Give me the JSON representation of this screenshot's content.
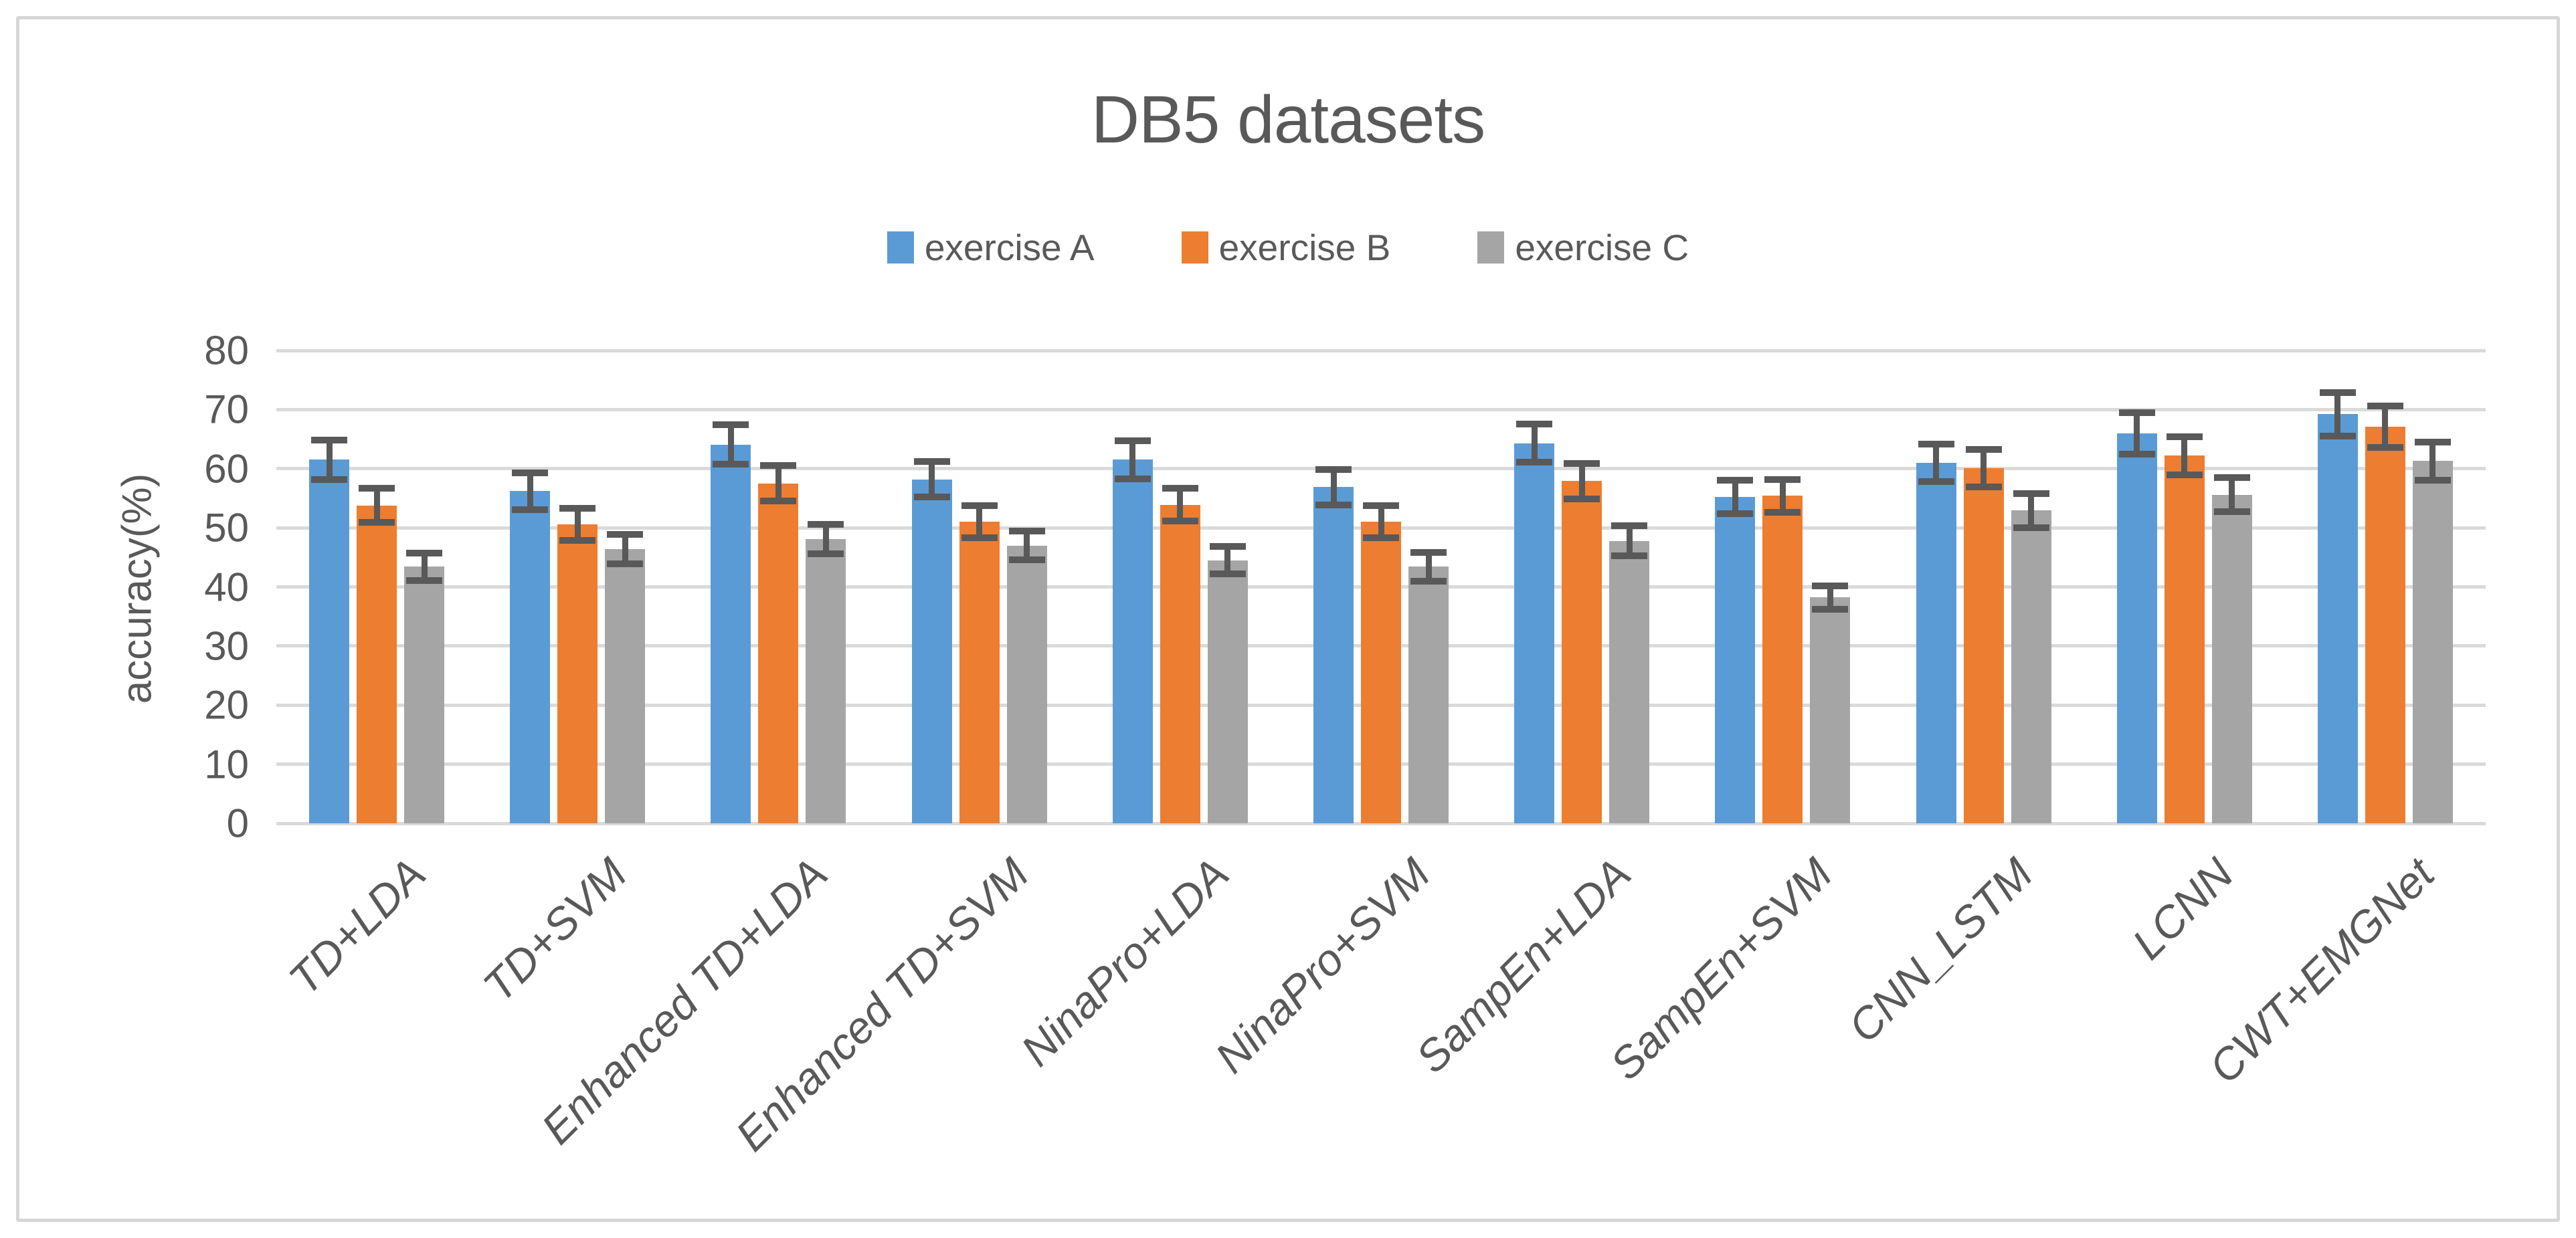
{
  "frame": {
    "border_color": "#d6d6d6"
  },
  "chart_data": {
    "type": "bar",
    "title": "DB5 datasets",
    "xlabel": "",
    "ylabel": "accuracy(%)",
    "ylim": [
      0,
      80
    ],
    "yticks": [
      0,
      10,
      20,
      30,
      40,
      50,
      60,
      70,
      80
    ],
    "grid": true,
    "gridline_color": "#dadada",
    "text_color": "#595959",
    "error_bar_color": "#595959",
    "legend_position": "top",
    "categories": [
      "TD+LDA",
      "TD+SVM",
      "Enhanced TD+LDA",
      "Enhanced TD+SVM",
      "NinaPro+LDA",
      "NinaPro+SVM",
      "SampEn+LDA",
      "SampEn+SVM",
      "CNN_LSTM",
      "LCNN",
      "CWT+EMGNet"
    ],
    "series": [
      {
        "name": "exercise A",
        "color": "#5B9BD5",
        "values": [
          61.5,
          56.2,
          64.1,
          58.2,
          61.5,
          56.9,
          64.3,
          55.2,
          61.0,
          66.0,
          69.2
        ],
        "errors": [
          3.3,
          3.1,
          3.3,
          3.0,
          3.2,
          3.0,
          3.2,
          2.8,
          3.2,
          3.5,
          3.7
        ]
      },
      {
        "name": "exercise B",
        "color": "#ED7D31",
        "values": [
          53.8,
          50.6,
          57.5,
          51.0,
          53.9,
          51.0,
          57.9,
          55.4,
          60.1,
          62.2,
          67.1
        ],
        "errors": [
          2.9,
          2.7,
          3.0,
          2.7,
          2.8,
          2.7,
          3.0,
          2.8,
          3.2,
          3.2,
          3.5
        ]
      },
      {
        "name": "exercise C",
        "color": "#A5A5A5",
        "values": [
          43.4,
          46.4,
          48.1,
          47.0,
          44.5,
          43.4,
          47.8,
          38.2,
          52.9,
          55.6,
          61.3
        ],
        "errors": [
          2.3,
          2.5,
          2.5,
          2.4,
          2.3,
          2.4,
          2.5,
          2.0,
          2.9,
          2.9,
          3.2
        ]
      }
    ]
  }
}
